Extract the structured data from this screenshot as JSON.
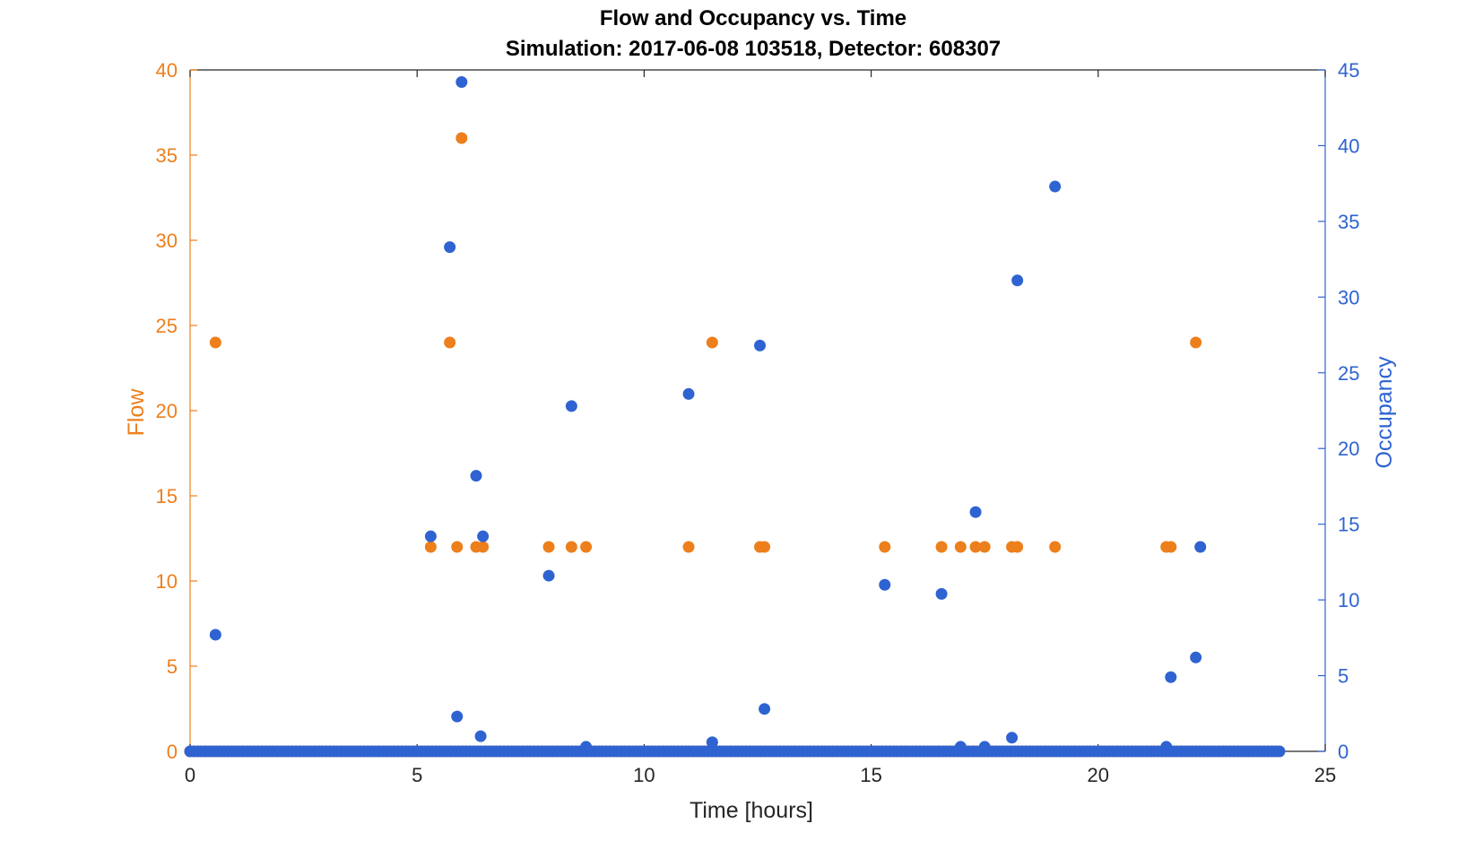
{
  "chart_data": {
    "type": "scatter",
    "title": "Flow and Occupancy vs. Time",
    "subtitle": "Simulation:  2017-06-08 103518,  Detector:  608307",
    "xlabel": "Time [hours]",
    "ylabel_left": "Flow",
    "ylabel_right": "Occupancy",
    "xlim": [
      0,
      25
    ],
    "ylim_left": [
      0,
      40
    ],
    "ylim_right": [
      0,
      45
    ],
    "xticks": [
      0,
      5,
      10,
      15,
      20,
      25
    ],
    "yticks_left": [
      0,
      5,
      10,
      15,
      20,
      25,
      30,
      35,
      40
    ],
    "yticks_right": [
      0,
      5,
      10,
      15,
      20,
      25,
      30,
      35,
      40,
      45
    ],
    "grid": false,
    "colors": {
      "left": "#ED7F1C",
      "right": "#2E63D1"
    },
    "series": [
      {
        "axis": "left",
        "nonzero_points": [
          [
            0.56,
            24
          ],
          [
            5.3,
            12
          ],
          [
            5.72,
            24
          ],
          [
            5.88,
            12
          ],
          [
            5.98,
            36
          ],
          [
            6.3,
            12
          ],
          [
            6.45,
            12
          ],
          [
            7.9,
            12
          ],
          [
            8.4,
            12
          ],
          [
            8.72,
            12
          ],
          [
            10.98,
            12
          ],
          [
            11.5,
            24
          ],
          [
            12.55,
            12
          ],
          [
            12.65,
            12
          ],
          [
            15.3,
            12
          ],
          [
            16.55,
            12
          ],
          [
            16.97,
            12
          ],
          [
            17.3,
            12
          ],
          [
            17.5,
            12
          ],
          [
            18.1,
            12
          ],
          [
            18.22,
            12
          ],
          [
            19.05,
            12
          ],
          [
            21.5,
            12
          ],
          [
            21.6,
            12
          ],
          [
            22.15,
            24
          ]
        ],
        "zero_baseline": {
          "from": 0,
          "to": 24,
          "step": 0.0833
        }
      },
      {
        "axis": "right",
        "nonzero_points": [
          [
            0.56,
            7.7
          ],
          [
            5.3,
            14.2
          ],
          [
            5.72,
            33.3
          ],
          [
            5.88,
            2.3
          ],
          [
            5.98,
            44.2
          ],
          [
            6.3,
            18.2
          ],
          [
            6.45,
            14.2
          ],
          [
            6.4,
            1.0
          ],
          [
            7.9,
            11.6
          ],
          [
            8.4,
            22.8
          ],
          [
            8.72,
            0.3
          ],
          [
            10.98,
            23.6
          ],
          [
            11.5,
            0.6
          ],
          [
            12.55,
            26.8
          ],
          [
            12.65,
            2.8
          ],
          [
            15.3,
            11.0
          ],
          [
            16.55,
            10.4
          ],
          [
            16.97,
            0.3
          ],
          [
            17.3,
            15.8
          ],
          [
            17.5,
            0.3
          ],
          [
            18.1,
            0.9
          ],
          [
            18.22,
            31.1
          ],
          [
            19.05,
            37.3
          ],
          [
            21.5,
            0.3
          ],
          [
            21.6,
            4.9
          ],
          [
            22.15,
            6.2
          ],
          [
            22.25,
            13.5
          ]
        ],
        "zero_baseline": {
          "from": 0,
          "to": 24,
          "step": 0.0833
        }
      }
    ]
  }
}
